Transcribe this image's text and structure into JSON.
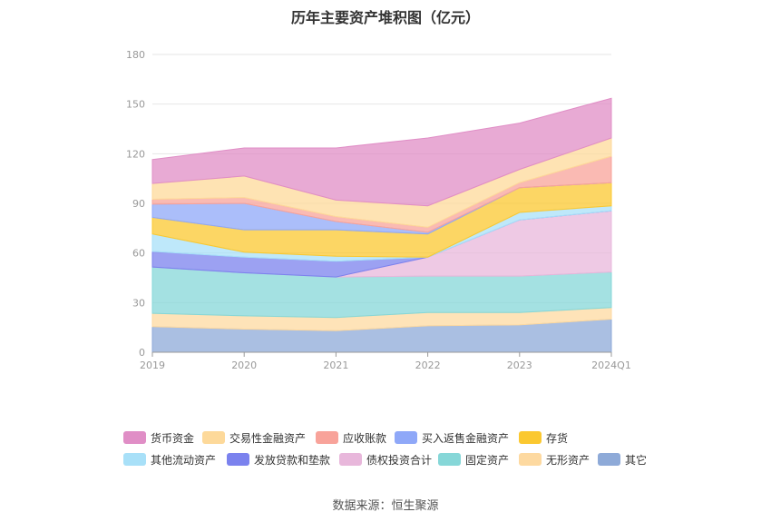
{
  "title": "历年主要资产堆积图（亿元）",
  "source": "数据来源：恒生聚源",
  "chart_data": {
    "type": "area",
    "stacked": true,
    "title": "历年主要资产堆积图（亿元）",
    "categories": [
      "2019",
      "2020",
      "2021",
      "2022",
      "2023",
      "2024Q1"
    ],
    "ylim": [
      0,
      180
    ],
    "yticks": [
      0,
      30,
      60,
      90,
      120,
      150,
      180
    ],
    "grid": true,
    "legend_position": "bottom",
    "series": [
      {
        "name": "其它",
        "color": "#8eaad8",
        "values": [
          15.5,
          14,
          13,
          16,
          16.5,
          20
        ]
      },
      {
        "name": "无形资产",
        "color": "#fdd9a0",
        "values": [
          8,
          8,
          8,
          8,
          7.5,
          7
        ]
      },
      {
        "name": "固定资产",
        "color": "#86d7d8",
        "values": [
          28,
          26,
          24.5,
          22,
          22,
          21.5
        ]
      },
      {
        "name": "债权投资合计",
        "color": "#e8b7db",
        "values": [
          0,
          0,
          0,
          11.5,
          34,
          37
        ]
      },
      {
        "name": "发放贷款和垫款",
        "color": "#7b82ee",
        "values": [
          9.5,
          9.5,
          9.5,
          0,
          0,
          0
        ]
      },
      {
        "name": "其他流动资产",
        "color": "#a8e0f8",
        "values": [
          10.5,
          3,
          3,
          0,
          4.5,
          3
        ]
      },
      {
        "name": "存货",
        "color": "#fbc830",
        "values": [
          10,
          13.5,
          16,
          14,
          15,
          14
        ]
      },
      {
        "name": "买入返售金融资产",
        "color": "#8fa8f8",
        "values": [
          8,
          16,
          5,
          1,
          0,
          0
        ]
      },
      {
        "name": "应收账款",
        "color": "#f8a39a",
        "values": [
          3,
          3.5,
          3,
          3,
          3,
          16
        ]
      },
      {
        "name": "交易性金融资产",
        "color": "#fdd99a",
        "values": [
          9.5,
          13,
          10,
          13,
          8,
          11
        ]
      },
      {
        "name": "货币资金",
        "color": "#e08ec6",
        "values": [
          14.5,
          17,
          31.5,
          41,
          28,
          24
        ]
      }
    ],
    "legend_order": [
      "货币资金",
      "交易性金融资产",
      "应收账款",
      "买入返售金融资产",
      "存货",
      "其他流动资产",
      "发放贷款和垫款",
      "债权投资合计",
      "固定资产",
      "无形资产",
      "其它"
    ]
  }
}
